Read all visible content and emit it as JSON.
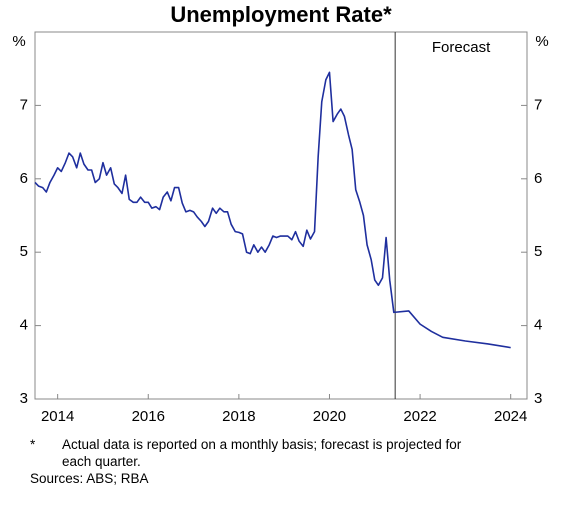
{
  "chart_data": {
    "type": "line",
    "title": "Unemployment Rate*",
    "y_label": "%",
    "ylim": [
      3,
      8
    ],
    "yticks": [
      3,
      4,
      5,
      6,
      7
    ],
    "xlim": [
      2014,
      2024.86
    ],
    "xticks": [
      {
        "value": 2014.5,
        "label": "2014"
      },
      {
        "value": 2016.5,
        "label": "2016"
      },
      {
        "value": 2018.5,
        "label": "2018"
      },
      {
        "value": 2020.5,
        "label": "2020"
      },
      {
        "value": 2022.5,
        "label": "2022"
      },
      {
        "value": 2024.5,
        "label": "2024"
      }
    ],
    "annotation": {
      "text": "Forecast",
      "x": 2021.95
    },
    "color": "#1f2f9e",
    "x": [
      2014,
      2014.08,
      2014.17,
      2014.25,
      2014.33,
      2014.42,
      2014.5,
      2014.58,
      2014.67,
      2014.75,
      2014.83,
      2014.92,
      2015,
      2015.08,
      2015.17,
      2015.25,
      2015.33,
      2015.42,
      2015.5,
      2015.58,
      2015.67,
      2015.75,
      2015.83,
      2015.92,
      2016,
      2016.08,
      2016.17,
      2016.25,
      2016.33,
      2016.42,
      2016.5,
      2016.58,
      2016.67,
      2016.75,
      2016.83,
      2016.92,
      2017,
      2017.08,
      2017.17,
      2017.25,
      2017.33,
      2017.42,
      2017.5,
      2017.58,
      2017.67,
      2017.75,
      2017.83,
      2017.92,
      2018,
      2018.08,
      2018.17,
      2018.25,
      2018.33,
      2018.42,
      2018.5,
      2018.58,
      2018.67,
      2018.75,
      2018.83,
      2018.92,
      2019,
      2019.08,
      2019.17,
      2019.25,
      2019.33,
      2019.42,
      2019.5,
      2019.58,
      2019.67,
      2019.75,
      2019.83,
      2019.92,
      2020,
      2020.08,
      2020.17,
      2020.25,
      2020.33,
      2020.42,
      2020.5,
      2020.58,
      2020.67,
      2020.75,
      2020.83,
      2020.92,
      2021,
      2021.08,
      2021.17,
      2021.25,
      2021.33,
      2021.42,
      2021.5,
      2021.58,
      2021.67,
      2021.75,
      2021.83,
      2021.92,
      2022.25,
      2022.5,
      2022.75,
      2023,
      2023.5,
      2024,
      2024.5
    ],
    "values": [
      5.95,
      5.9,
      5.88,
      5.82,
      5.95,
      6.05,
      6.15,
      6.1,
      6.22,
      6.35,
      6.3,
      6.15,
      6.35,
      6.2,
      6.12,
      6.12,
      5.95,
      6.0,
      6.22,
      6.05,
      6.15,
      5.93,
      5.88,
      5.8,
      6.05,
      5.72,
      5.68,
      5.68,
      5.75,
      5.68,
      5.68,
      5.6,
      5.62,
      5.58,
      5.75,
      5.82,
      5.7,
      5.88,
      5.88,
      5.67,
      5.55,
      5.57,
      5.55,
      5.48,
      5.42,
      5.35,
      5.42,
      5.6,
      5.53,
      5.6,
      5.55,
      5.55,
      5.38,
      5.28,
      5.27,
      5.25,
      5.0,
      4.98,
      5.1,
      5.0,
      5.07,
      5.0,
      5.1,
      5.22,
      5.2,
      5.22,
      5.22,
      5.22,
      5.17,
      5.28,
      5.15,
      5.08,
      5.3,
      5.18,
      5.28,
      6.3,
      7.05,
      7.35,
      7.45,
      6.78,
      6.88,
      6.95,
      6.85,
      6.6,
      6.4,
      5.85,
      5.68,
      5.5,
      5.1,
      4.9,
      4.62,
      4.55,
      4.65,
      5.2,
      4.62,
      4.18,
      4.2,
      4.02,
      3.92,
      3.84,
      3.79,
      3.75,
      3.7
    ]
  },
  "footnote": {
    "marker": "*",
    "text": "Actual data is reported on a monthly basis; forecast is projected for each quarter."
  },
  "sources": "Sources: ABS; RBA"
}
